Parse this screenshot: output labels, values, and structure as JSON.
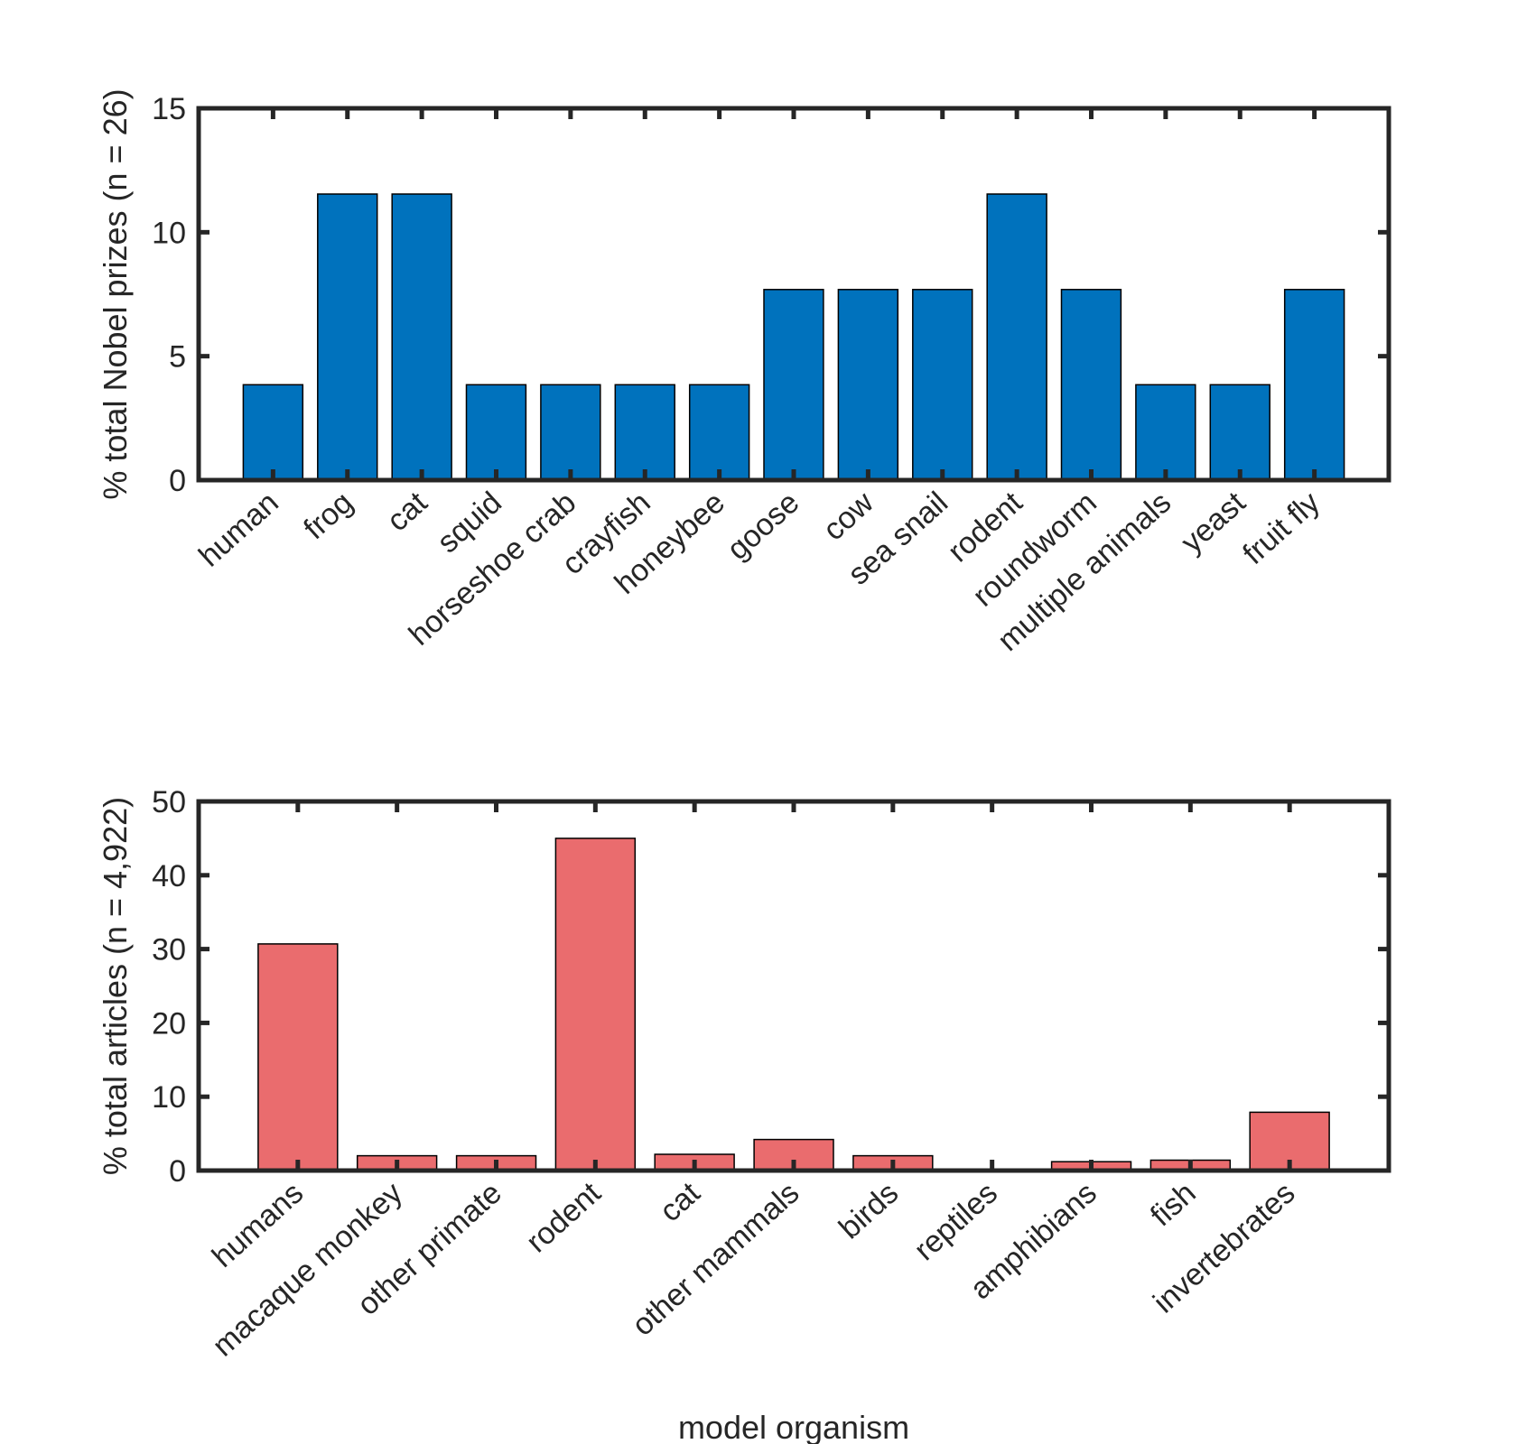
{
  "colors": {
    "top_bar": "#0072BD",
    "bottom_bar": "#EA6C6E",
    "axes": "#262626",
    "bar_edge": "#000000"
  },
  "chart_data": [
    {
      "type": "bar",
      "title": "",
      "ylabel": "% total Nobel prizes (n = 26)",
      "xlabel": "",
      "ylim": [
        0,
        15
      ],
      "yticks": [
        0,
        5,
        10,
        15
      ],
      "grid": false,
      "box": true,
      "categories": [
        "human",
        "frog",
        "cat",
        "squid",
        "horseshoe crab",
        "crayfish",
        "honeybee",
        "goose",
        "cow",
        "sea snail",
        "rodent",
        "roundworm",
        "multiple animals",
        "yeast",
        "fruit fly"
      ],
      "values": [
        3.85,
        11.54,
        11.54,
        3.85,
        3.85,
        3.85,
        3.85,
        7.69,
        7.69,
        7.69,
        11.54,
        7.69,
        3.85,
        3.85,
        7.69
      ]
    },
    {
      "type": "bar",
      "title": "",
      "ylabel": "% total articles (n = 4,922)",
      "xlabel": "model organism",
      "ylim": [
        0,
        50
      ],
      "yticks": [
        0,
        10,
        20,
        30,
        40,
        50
      ],
      "grid": false,
      "box": true,
      "categories": [
        "humans",
        "macaque monkey",
        "other primate",
        "rodent",
        "cat",
        "other mammals",
        "birds",
        "reptiles",
        "amphibians",
        "fish",
        "invertebrates"
      ],
      "values": [
        30.7,
        2.0,
        2.0,
        45.0,
        2.2,
        4.2,
        2.0,
        0.1,
        1.2,
        1.4,
        7.9
      ]
    }
  ]
}
